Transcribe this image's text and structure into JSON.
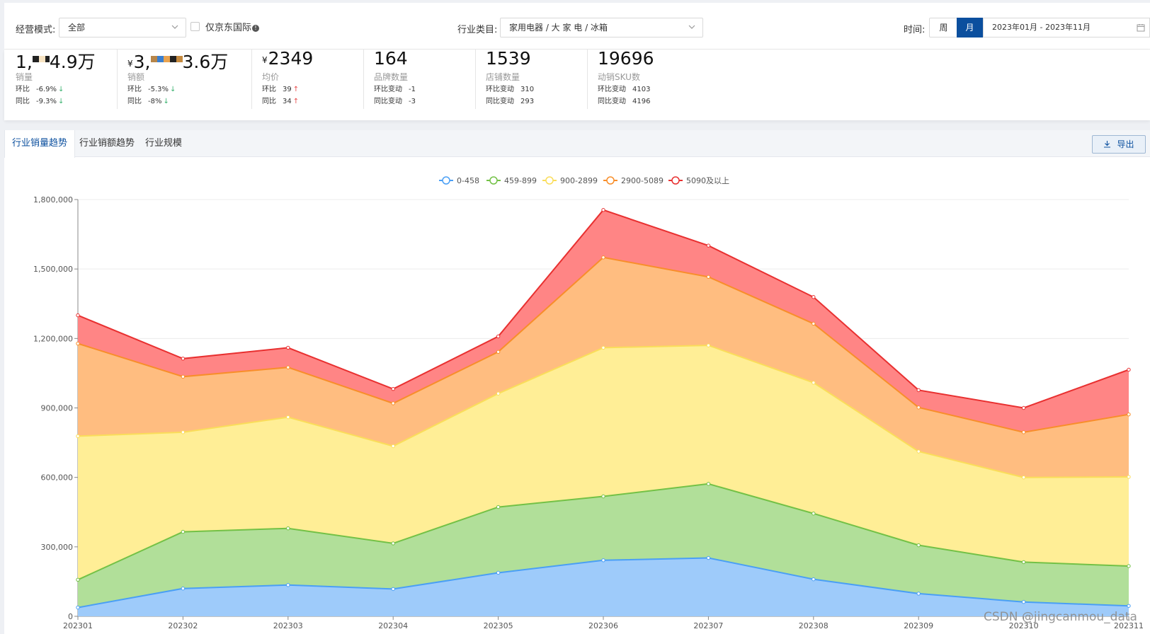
{
  "filters": {
    "mode_label": "经营模式:",
    "mode_value": "全部",
    "jd_intl_label": "仅京东国际",
    "category_label": "行业类目:",
    "category_value": "家用电器 / 大 家 电 / 冰箱",
    "time_label": "时间:",
    "week_label": "周",
    "month_label": "月",
    "date_range": "2023年01月 - 2023年11月"
  },
  "stats": [
    {
      "value_a": "1,",
      "value_b": "4.9万",
      "label": "销量",
      "r1k": "环比",
      "r1v": "-6.9%",
      "r1dir": "down",
      "r2k": "同比",
      "r2v": "-9.3%",
      "r2dir": "down"
    },
    {
      "currency": "¥",
      "value_a": "3,",
      "value_b": "3.6万",
      "label": "销额",
      "r1k": "环比",
      "r1v": "-5.3%",
      "r1dir": "down",
      "r2k": "同比",
      "r2v": "-8%",
      "r2dir": "down"
    },
    {
      "currency": "¥",
      "value": "2349",
      "label": "均价",
      "r1k": "环比",
      "r1v": "39",
      "r1dir": "up",
      "r2k": "同比",
      "r2v": "34",
      "r2dir": "up"
    },
    {
      "value": "164",
      "label": "品牌数量",
      "r1k": "环比变动",
      "r1v": "-1",
      "r2k": "同比变动",
      "r2v": "-3"
    },
    {
      "value": "1539",
      "label": "店铺数量",
      "r1k": "环比变动",
      "r1v": "310",
      "r2k": "同比变动",
      "r2v": "293"
    },
    {
      "value": "19696",
      "label": "动销SKU数",
      "r1k": "环比变动",
      "r1v": "4103",
      "r2k": "同比变动",
      "r2v": "4196"
    }
  ],
  "tabs": [
    "行业销量趋势",
    "行业销额趋势",
    "行业规模"
  ],
  "export_label": "导出",
  "colors": {
    "accent": "#0b4f9e",
    "down": "#3cb371",
    "up": "#e84a4a"
  },
  "chart_data": {
    "type": "area",
    "stacked": true,
    "categories": [
      "202301",
      "202302",
      "202303",
      "202304",
      "202305",
      "202306",
      "202307",
      "202308",
      "202309",
      "202310",
      "202311"
    ],
    "series": [
      {
        "name": "0-458",
        "line": "#4a9ff5",
        "fill": "#9ecbfa",
        "values": [
          38000,
          120000,
          135000,
          118000,
          188000,
          242000,
          252000,
          160000,
          98000,
          62000,
          45000
        ]
      },
      {
        "name": "459-899",
        "line": "#73c146",
        "fill": "#b1df99",
        "values": [
          120000,
          245000,
          245000,
          197000,
          284000,
          276000,
          320000,
          284000,
          209000,
          172000,
          172000
        ]
      },
      {
        "name": "900-2899",
        "line": "#fadd5a",
        "fill": "#ffee96",
        "values": [
          620000,
          430000,
          480000,
          420000,
          490000,
          642000,
          598000,
          565000,
          405000,
          366000,
          385000
        ]
      },
      {
        "name": "2900-5089",
        "line": "#f88e2a",
        "fill": "#ffbd80",
        "values": [
          400000,
          240000,
          215000,
          185000,
          180000,
          390000,
          296000,
          255000,
          190000,
          195000,
          270000
        ]
      },
      {
        "name": "5090及以上",
        "line": "#e83030",
        "fill": "#ff8585",
        "values": [
          122000,
          78000,
          85000,
          62000,
          67000,
          205000,
          135000,
          115000,
          75000,
          105000,
          193000
        ]
      }
    ],
    "ylim": [
      0,
      1800000
    ],
    "yticks": [
      0,
      300000,
      600000,
      900000,
      1200000,
      1500000,
      1800000
    ],
    "ytick_labels": [
      "0",
      "300,000",
      "600,000",
      "900,000",
      "1,200,000",
      "1,500,000",
      "1,800,000"
    ],
    "legend_position": "top-center"
  },
  "watermark": "CSDN @jingcanmou_data"
}
